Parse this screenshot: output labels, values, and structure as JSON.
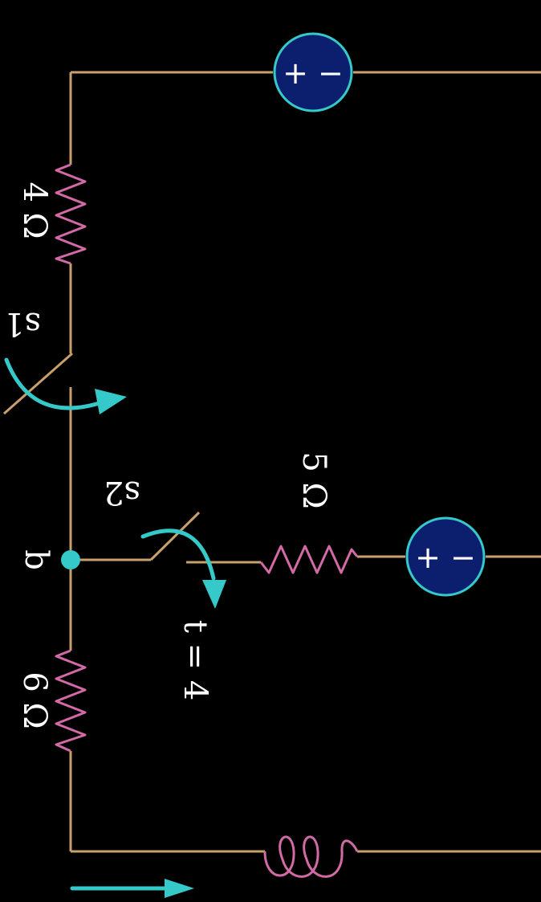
{
  "labels": {
    "r_top": "4 Ω",
    "r_bottom": "6 Ω",
    "r_middle": "5 Ω",
    "switch_top": "s1",
    "switch_mid": "s2",
    "time": "t = 4",
    "node": "b"
  },
  "sources": {
    "top_sign": "+ −",
    "mid_sign": "+ −"
  },
  "colors": {
    "wire": "#c8a06c",
    "resistor": "#d26aa6",
    "arrow": "#35c9c9",
    "source_fill": "#0b1f6e"
  }
}
